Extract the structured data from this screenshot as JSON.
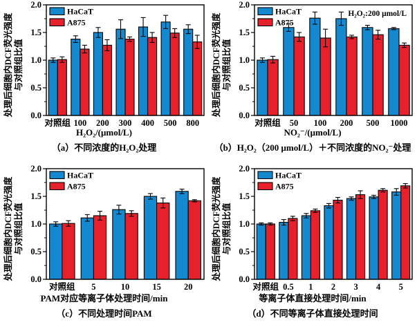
{
  "figure": {
    "background": "#ffffff",
    "series_colors": {
      "HaCaT": "#1489d0",
      "A875": "#e6212b"
    }
  },
  "chart_data": [
    {
      "id": "a",
      "type": "bar",
      "ylabel_line1": "处理后细胞内DCF荧光强度",
      "ylabel_line2": "与对照组比值",
      "xlabel": "H₂O₂/(μmol/L)",
      "caption": "（a）不同浓度的H₂O₂处理",
      "ylim": [
        0.0,
        2.0
      ],
      "yticks": [
        "0.0",
        "0.5",
        "1.0",
        "1.5",
        "2.0"
      ],
      "minor_tick_step": 0.25,
      "grid": false,
      "legend_position": "top-left",
      "annotation": "",
      "categories": [
        "对照组",
        "100",
        "200",
        "300",
        "400",
        "500",
        "800"
      ],
      "series": [
        {
          "name": "HaCaT",
          "color": "#1489d0",
          "values": [
            1.0,
            1.38,
            1.5,
            1.56,
            1.6,
            1.69,
            1.56
          ],
          "errors": [
            0.04,
            0.06,
            0.09,
            0.17,
            0.17,
            0.12,
            0.08
          ]
        },
        {
          "name": "A875",
          "color": "#e6212b",
          "values": [
            1.01,
            1.2,
            1.27,
            1.38,
            1.41,
            1.49,
            1.33
          ],
          "errors": [
            0.05,
            0.07,
            0.1,
            0.04,
            0.09,
            0.08,
            0.12
          ]
        }
      ]
    },
    {
      "id": "b",
      "type": "bar",
      "ylabel_line1": "处理后细胞内DCF荧光强度",
      "ylabel_line2": "与对照组比值",
      "xlabel": "NO₂⁻/(μmol/L)",
      "caption": "（b）H₂O₂（200 μmol/L）＋不同浓度的NO₂⁻处理",
      "ylim": [
        0.0,
        2.0
      ],
      "yticks": [
        "0.0",
        "0.5",
        "1.0",
        "1.5",
        "2.0"
      ],
      "minor_tick_step": 0.25,
      "grid": false,
      "legend_position": "top-left",
      "annotation": "H₂O₂:200 μmol/L",
      "categories": [
        "对照组",
        "50",
        "100",
        "200",
        "500",
        "1000"
      ],
      "series": [
        {
          "name": "HaCaT",
          "color": "#1489d0",
          "values": [
            1.0,
            1.59,
            1.76,
            1.75,
            1.59,
            1.57
          ],
          "errors": [
            0.04,
            0.07,
            0.11,
            0.12,
            0.04,
            0.02
          ]
        },
        {
          "name": "A875",
          "color": "#e6212b",
          "values": [
            1.01,
            1.42,
            1.4,
            1.42,
            1.46,
            1.27
          ],
          "errors": [
            0.06,
            0.08,
            0.16,
            0.03,
            0.08,
            0.04
          ]
        }
      ]
    },
    {
      "id": "c",
      "type": "bar",
      "ylabel_line1": "处理后细胞内DCF荧光强度",
      "ylabel_line2": "与对照组比值",
      "xlabel": "PAM对应等离子体处理时间/min",
      "caption": "（c）不同处理时间PAM",
      "ylim": [
        0.0,
        2.0
      ],
      "yticks": [
        "0.0",
        "0.5",
        "1.0",
        "1.5",
        "2.0"
      ],
      "minor_tick_step": 0.25,
      "grid": false,
      "legend_position": "top-left",
      "annotation": "",
      "categories": [
        "对照组",
        "5",
        "10",
        "15",
        "20"
      ],
      "series": [
        {
          "name": "HaCaT",
          "color": "#1489d0",
          "values": [
            1.0,
            1.11,
            1.26,
            1.5,
            1.59
          ],
          "errors": [
            0.04,
            0.06,
            0.08,
            0.05,
            0.04
          ]
        },
        {
          "name": "A875",
          "color": "#e6212b",
          "values": [
            1.01,
            1.15,
            1.19,
            1.38,
            1.42
          ],
          "errors": [
            0.05,
            0.08,
            0.05,
            0.09,
            0.02
          ]
        }
      ]
    },
    {
      "id": "d",
      "type": "bar",
      "ylabel_line1": "处理后细胞内DCF荧光强度",
      "ylabel_line2": "与对照组比值",
      "xlabel": "等离子体直接处理时间/min",
      "caption": "（d）不同等离子体直接处理时间",
      "ylim": [
        0.0,
        2.0
      ],
      "yticks": [
        "0.0",
        "0.5",
        "1.0",
        "1.5",
        "2.0"
      ],
      "minor_tick_step": 0.25,
      "grid": false,
      "legend_position": "top-left",
      "annotation": "",
      "categories": [
        "对照组",
        "0.5",
        "1",
        "2",
        "3",
        "4",
        "5"
      ],
      "series": [
        {
          "name": "HaCaT",
          "color": "#1489d0",
          "values": [
            1.0,
            1.03,
            1.15,
            1.33,
            1.46,
            1.49,
            1.58
          ],
          "errors": [
            0.02,
            0.05,
            0.04,
            0.04,
            0.03,
            0.03,
            0.06
          ]
        },
        {
          "name": "A875",
          "color": "#e6212b",
          "values": [
            1.0,
            1.1,
            1.24,
            1.43,
            1.53,
            1.61,
            1.69
          ],
          "errors": [
            0.02,
            0.04,
            0.03,
            0.05,
            0.07,
            0.03,
            0.04
          ]
        }
      ]
    }
  ]
}
